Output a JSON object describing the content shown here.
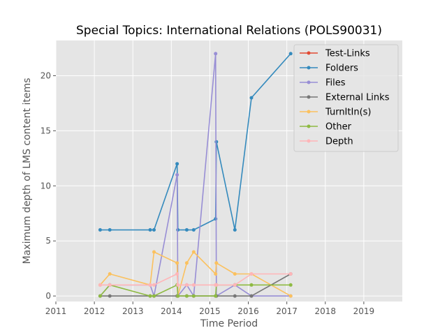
{
  "chart_data": {
    "type": "line",
    "title": "Special Topics: International Relations (POLS90031)",
    "xlabel": "Time Period",
    "ylabel": "Maximum depth of LMS content items",
    "xlim": [
      2011,
      2020
    ],
    "ylim": [
      -0.5,
      23.2
    ],
    "x_ticks": [
      "2011",
      "2012",
      "2013",
      "2014",
      "2015",
      "2016",
      "2017",
      "2018",
      "2019"
    ],
    "y_ticks": [
      "0",
      "5",
      "10",
      "15",
      "20"
    ],
    "grid": true,
    "legend_position": "top-right",
    "x": [
      "2012.15",
      "2012.4",
      "2013.45",
      "2013.55",
      "2014.15",
      "2014.17",
      "2014.4",
      "2014.58",
      "2015.15",
      "2015.17",
      "2015.65",
      "2016.08",
      "2017.1"
    ],
    "series": [
      {
        "name": "Test-Links",
        "color": "#E24A33",
        "values": [
          null,
          null,
          null,
          null,
          null,
          null,
          null,
          null,
          null,
          null,
          null,
          null,
          null
        ]
      },
      {
        "name": "Folders",
        "color": "#348ABD",
        "values": [
          6,
          6,
          6,
          6,
          12,
          6,
          6,
          6,
          7,
          14,
          6,
          18,
          22
        ]
      },
      {
        "name": "Files",
        "color": "#988ED5",
        "values": [
          0,
          1,
          1,
          0,
          11,
          0,
          1,
          0,
          22,
          0,
          1,
          0,
          0
        ]
      },
      {
        "name": "External Links",
        "color": "#777777",
        "values": [
          0,
          0,
          0,
          0,
          0,
          0,
          0,
          0,
          0,
          0,
          0,
          0,
          2
        ]
      },
      {
        "name": "TurnItIn(s)",
        "color": "#FBC15E",
        "values": [
          1,
          2,
          1,
          4,
          3,
          0,
          3,
          4,
          2,
          3,
          2,
          2,
          0
        ]
      },
      {
        "name": "Other",
        "color": "#8EBA42",
        "values": [
          0,
          1,
          0,
          0,
          1,
          0,
          0,
          0,
          0,
          1,
          1,
          1,
          1
        ]
      },
      {
        "name": "Depth",
        "color": "#FFB5B8",
        "values": [
          1,
          1,
          1,
          1,
          2,
          1,
          1,
          1,
          1,
          1,
          1,
          2,
          2
        ]
      }
    ]
  }
}
